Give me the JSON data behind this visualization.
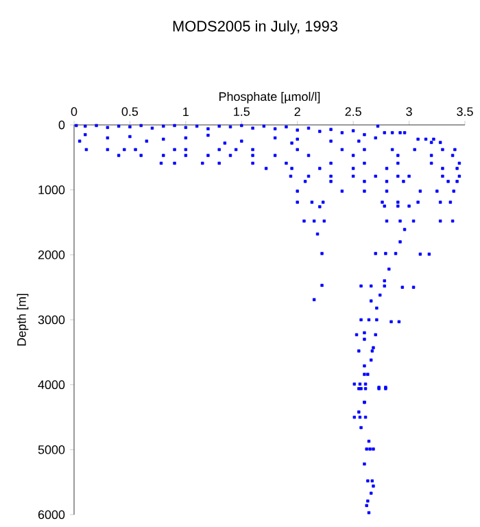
{
  "chart_data": {
    "type": "scatter",
    "title": "MODS2005 in July, 1993",
    "xlabel": "Phosphate [µmol/l]",
    "ylabel": "Depth [m]",
    "xlim": [
      0,
      3.5
    ],
    "xticks": [
      0,
      0.5,
      1,
      1.5,
      2,
      2.5,
      3,
      3.5
    ],
    "ylim": [
      6000,
      0
    ],
    "yticks": [
      0,
      1000,
      2000,
      3000,
      4000,
      5000,
      6000
    ],
    "marker": "square",
    "series": [
      {
        "color": "#0000ff",
        "x": [
          0.02,
          0.1,
          0.2,
          0.3,
          0.4,
          0.5,
          0.6,
          0.7,
          0.8,
          0.9,
          1.0,
          1.1,
          1.2,
          1.3,
          1.4,
          1.5,
          1.6,
          1.7,
          1.8,
          1.9,
          2.0,
          2.1,
          2.2,
          2.3,
          2.4,
          2.5,
          2.6,
          2.7,
          2.72,
          2.78,
          2.85,
          2.92,
          2.96,
          3.08,
          3.15,
          3.22,
          3.2,
          3.28,
          0.1,
          0.3,
          0.5,
          0.8,
          1.0,
          1.2,
          1.5,
          1.8,
          2.0,
          2.3,
          0.05,
          0.65,
          1.35,
          1.95,
          2.55,
          0.11,
          0.3,
          0.45,
          0.55,
          0.9,
          1.0,
          1.3,
          1.45,
          1.6,
          2.0,
          2.4,
          2.6,
          2.85,
          3.05,
          3.3,
          3.41,
          0.4,
          0.6,
          0.8,
          1.0,
          1.2,
          1.4,
          1.6,
          1.8,
          2.1,
          2.5,
          2.9,
          3.2,
          3.39,
          0.78,
          0.9,
          1.15,
          1.3,
          1.6,
          1.9,
          2.3,
          2.6,
          2.9,
          3.2,
          3.45,
          1.72,
          1.95,
          2.2,
          2.5,
          2.8,
          3.3,
          3.43,
          1.94,
          2.1,
          2.3,
          2.5,
          2.7,
          2.9,
          3.0,
          3.3,
          3.45,
          2.07,
          2.3,
          2.6,
          2.8,
          2.95,
          3.35,
          3.43,
          2.0,
          2.4,
          2.6,
          2.8,
          3.1,
          3.25,
          3.4,
          2.0,
          2.13,
          2.23,
          2.76,
          2.9,
          3.08,
          3.28,
          3.37,
          2.78,
          2.9,
          3.0,
          2.2,
          2.06,
          2.15,
          2.24,
          2.8,
          2.92,
          3.04,
          3.28,
          3.39,
          2.18,
          2.96,
          2.92,
          2.22,
          2.7,
          2.79,
          2.88,
          3.1,
          3.18,
          2.82,
          2.78,
          2.22,
          2.57,
          2.66,
          2.78,
          2.94,
          3.04,
          2.74,
          2.15,
          2.66,
          2.71,
          2.57,
          2.64,
          2.71,
          2.84,
          2.91,
          2.6,
          2.53,
          2.7,
          2.6,
          2.55,
          2.67,
          2.68,
          2.66,
          2.6,
          2.6,
          2.63,
          2.51,
          2.56,
          2.61,
          2.57,
          2.73,
          2.79,
          2.6,
          2.55,
          2.55,
          2.61,
          2.73,
          2.79,
          2.6,
          2.51,
          2.56,
          2.61,
          2.57,
          2.64,
          2.62,
          2.68,
          2.65,
          2.6,
          2.67,
          2.63,
          2.68,
          2.66,
          2.63,
          2.62,
          2.64
        ],
        "values": [
          10,
          20,
          10,
          40,
          20,
          30,
          10,
          50,
          20,
          10,
          40,
          20,
          60,
          20,
          30,
          10,
          50,
          20,
          60,
          30,
          80,
          50,
          100,
          70,
          120,
          90,
          150,
          200,
          20,
          120,
          120,
          120,
          120,
          220,
          220,
          220,
          270,
          270,
          150,
          200,
          180,
          220,
          200,
          160,
          250,
          200,
          220,
          250,
          250,
          250,
          280,
          280,
          250,
          380,
          380,
          380,
          380,
          380,
          380,
          380,
          380,
          380,
          380,
          380,
          380,
          380,
          380,
          380,
          380,
          470,
          470,
          470,
          470,
          470,
          470,
          470,
          470,
          470,
          470,
          470,
          470,
          470,
          590,
          590,
          590,
          590,
          590,
          590,
          590,
          590,
          590,
          590,
          590,
          670,
          670,
          670,
          670,
          670,
          670,
          670,
          790,
          790,
          790,
          790,
          790,
          790,
          790,
          790,
          790,
          870,
          870,
          870,
          870,
          870,
          870,
          870,
          1020,
          1020,
          1020,
          1020,
          1020,
          1020,
          1020,
          1190,
          1190,
          1190,
          1190,
          1190,
          1190,
          1190,
          1190,
          1250,
          1250,
          1250,
          1260,
          1480,
          1480,
          1480,
          1480,
          1480,
          1480,
          1480,
          1480,
          1680,
          1610,
          1800,
          1980,
          1980,
          1980,
          1980,
          1990,
          1990,
          2220,
          2400,
          2470,
          2480,
          2480,
          2480,
          2500,
          2500,
          2620,
          2690,
          2710,
          2820,
          3000,
          3000,
          3000,
          3030,
          3030,
          3200,
          3230,
          3230,
          3300,
          3480,
          3480,
          3430,
          3620,
          3710,
          3840,
          3840,
          3990,
          3990,
          3990,
          4060,
          4040,
          4040,
          4270,
          4420,
          4060,
          4060,
          4060,
          4060,
          4270,
          4500,
          4500,
          4500,
          4660,
          4870,
          4990,
          4990,
          4990,
          5220,
          5480,
          5480,
          5560,
          5670,
          5790,
          5860,
          5970
        ]
      }
    ]
  }
}
